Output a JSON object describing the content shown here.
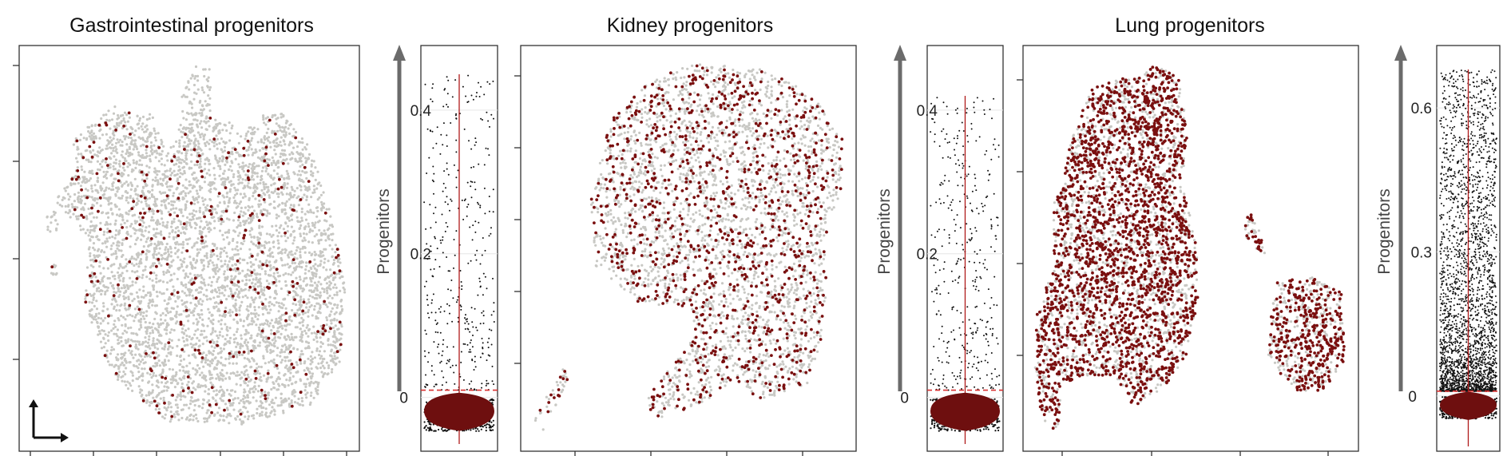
{
  "colors": {
    "background_cell": "#c8c8c4",
    "progenitor_cell": "#7a0f0f",
    "violin_fill": "#6e0f0f",
    "violin_line": "#b01a1a",
    "jitter_point": "#111111",
    "threshold_line": "#d93030",
    "arrow": "#6b6b6b",
    "frame": "#333333"
  },
  "panels": [
    {
      "title": "Gastrointestinal progenitors",
      "umap": {
        "density": 0.45,
        "progenitor_fraction": 0.05
      },
      "violin": {
        "ylabel": "Progenitors",
        "ticks": [
          "0",
          "0.2",
          "0.4"
        ],
        "tick_values": [
          0,
          0.2,
          0.4
        ],
        "ylim": [
          -0.075,
          0.49
        ],
        "threshold": 0.01,
        "max": 0.45
      }
    },
    {
      "title": "Kidney progenitors",
      "umap": {
        "density": 0.35,
        "progenitor_fraction": 0.28
      },
      "violin": {
        "ylabel": "Progenitors",
        "ticks": [
          "0",
          "0.2",
          "0.4"
        ],
        "tick_values": [
          0,
          0.2,
          0.4
        ],
        "ylim": [
          -0.075,
          0.49
        ],
        "threshold": 0.01,
        "max": 0.42
      }
    },
    {
      "title": "Lung progenitors",
      "umap": {
        "density": 0.55,
        "progenitor_fraction": 0.6
      },
      "violin": {
        "ylabel": "Progenitors",
        "ticks": [
          "0",
          "0.3",
          "0.6"
        ],
        "tick_values": [
          0,
          0.3,
          0.6
        ],
        "ylim": [
          -0.115,
          0.73
        ],
        "threshold": 0.01,
        "max": 0.68
      }
    }
  ],
  "chart_data": [
    {
      "type": "scatter",
      "title": "Gastrointestinal progenitors",
      "xlabel": "",
      "ylabel": "",
      "series": []
    },
    {
      "type": "scatter",
      "title": "Kidney progenitors",
      "xlabel": "",
      "ylabel": "",
      "series": []
    },
    {
      "type": "scatter",
      "title": "Lung progenitors",
      "xlabel": "",
      "ylabel": "",
      "series": []
    }
  ]
}
